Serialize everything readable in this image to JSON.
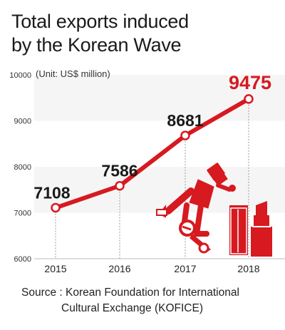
{
  "title_line1": "Total exports induced",
  "title_line2": "by the Korean Wave",
  "source_line1": "Source : Korean Foundation for International",
  "source_line2": "Cultural Exchange (KOFICE)",
  "colors": {
    "accent": "#d71920",
    "band": "#f5f5f5",
    "text": "#1a1a1a",
    "dash": "#9a9a9a"
  },
  "chart_data": {
    "type": "line",
    "title": "Total exports induced by the Korean Wave",
    "unit_label": "(Unit: US$ million)",
    "categories": [
      "2015",
      "2016",
      "2017",
      "2018"
    ],
    "x_tick_labels": [
      "2015",
      "2016",
      "2017",
      "2018"
    ],
    "y_ticks": [
      6000,
      7000,
      8000,
      9000,
      10000
    ],
    "y_tick_labels": [
      "6000",
      "7000",
      "8000",
      "9000",
      "10000"
    ],
    "ylim": [
      6000,
      10000
    ],
    "series": [
      {
        "values": [
          7108,
          7586,
          8681,
          9475
        ]
      }
    ],
    "data_labels": [
      "7108",
      "7586",
      "8681",
      "9475"
    ],
    "highlight_last": true,
    "grid": false,
    "illustrations": [
      "breakdancer-icon",
      "lipstick-icon"
    ]
  }
}
